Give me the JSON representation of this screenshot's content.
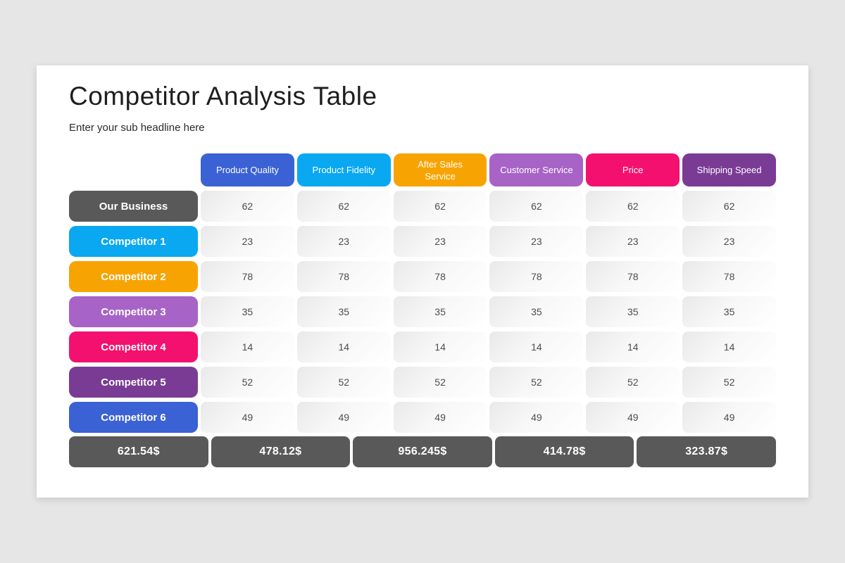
{
  "page": {
    "background_color": "#e6e6e6",
    "slide_color": "#ffffff"
  },
  "header": {
    "title": "Competitor Analysis Table",
    "subtitle": "Enter your sub headline here"
  },
  "table": {
    "columns": [
      {
        "label": "Product Quality",
        "color": "#3b62d4"
      },
      {
        "label": "Product Fidelity",
        "color": "#09a8f0"
      },
      {
        "label": "After Sales Service",
        "color": "#f7a402"
      },
      {
        "label": "Customer Service",
        "color": "#a763c6"
      },
      {
        "label": "Price",
        "color": "#f4106e"
      },
      {
        "label": "Shipping Speed",
        "color": "#7a3b95"
      }
    ],
    "rows": [
      {
        "label": "Our Business",
        "color": "#595959",
        "values": [
          62,
          62,
          62,
          62,
          62,
          62
        ]
      },
      {
        "label": "Competitor 1",
        "color": "#09a8f0",
        "values": [
          23,
          23,
          23,
          23,
          23,
          23
        ]
      },
      {
        "label": "Competitor 2",
        "color": "#f7a402",
        "values": [
          78,
          78,
          78,
          78,
          78,
          78
        ]
      },
      {
        "label": "Competitor 3",
        "color": "#a763c6",
        "values": [
          35,
          35,
          35,
          35,
          35,
          35
        ]
      },
      {
        "label": "Competitor 4",
        "color": "#f4106e",
        "values": [
          14,
          14,
          14,
          14,
          14,
          14
        ]
      },
      {
        "label": "Competitor 5",
        "color": "#7a3b95",
        "values": [
          52,
          52,
          52,
          52,
          52,
          52
        ]
      },
      {
        "label": "Competitor 6",
        "color": "#3b62d4",
        "values": [
          49,
          49,
          49,
          49,
          49,
          49
        ]
      }
    ],
    "totals": [
      "621.54$",
      "478.12$",
      "956.245$",
      "414.78$",
      "323.87$"
    ],
    "totals_color": "#595959",
    "value_text_color": "#4d4d4d"
  }
}
